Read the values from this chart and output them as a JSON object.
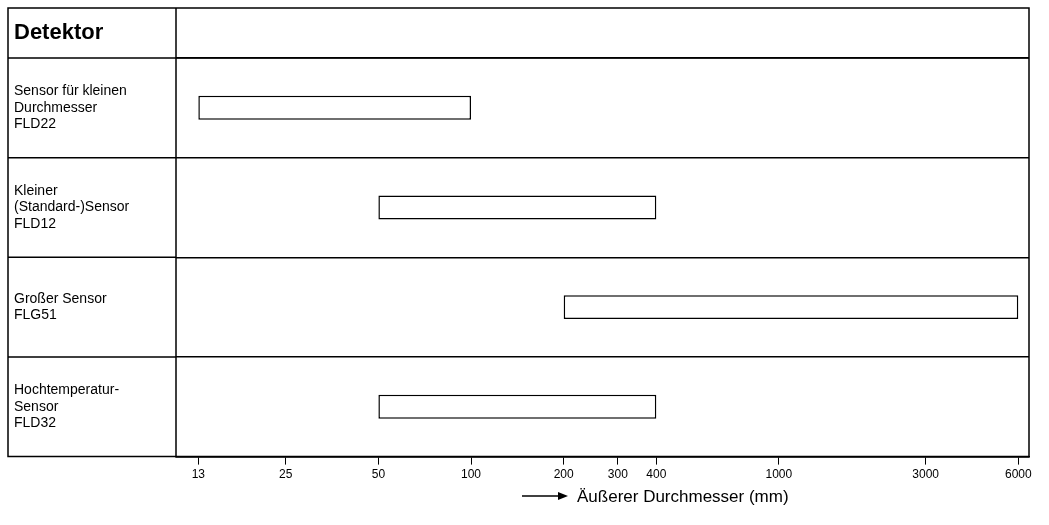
{
  "chart_data": {
    "type": "bar",
    "orientation": "horizontal",
    "ylabel": "Detektor",
    "xlabel": "Äußerer Durchmesser (mm)",
    "categories": [
      "Sensor für kleinen\nDurchmesser\nFLD22",
      "Kleiner\n(Standard-)Sensor\nFLD12",
      "Großer Sensor\nFLG51",
      "Hochtemperatur-\nSensor\nFLD32"
    ],
    "base": [
      13,
      50,
      200,
      50
    ],
    "values": [
      87,
      350,
      5800,
      350
    ],
    "color": "#ffffff",
    "xlim": [
      11,
      6500
    ],
    "log": "x",
    "xticks": [
      13,
      25,
      50,
      100,
      200,
      300,
      400,
      1000,
      3000,
      6000
    ],
    "grid": "y",
    "legend": false
  }
}
